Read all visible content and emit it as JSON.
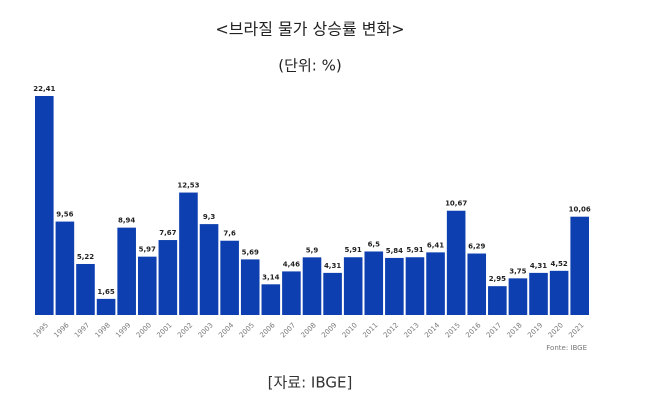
{
  "chart_data": {
    "type": "bar",
    "title": "<브라질 물가 상승률 변화>",
    "subtitle": "(단위: %)",
    "categories": [
      "1995",
      "1996",
      "1997",
      "1998",
      "1999",
      "2000",
      "2001",
      "2002",
      "2003",
      "2004",
      "2005",
      "2006",
      "2007",
      "2008",
      "2009",
      "2010",
      "2011",
      "2012",
      "2013",
      "2014",
      "2015",
      "2016",
      "2017",
      "2018",
      "2019",
      "2020",
      "2021"
    ],
    "values": [
      22.41,
      9.56,
      5.22,
      1.65,
      8.94,
      5.97,
      7.67,
      12.53,
      9.3,
      7.6,
      5.69,
      3.14,
      4.46,
      5.9,
      4.31,
      5.91,
      6.5,
      5.84,
      5.91,
      6.41,
      10.67,
      6.29,
      2.95,
      3.75,
      4.31,
      4.52,
      10.06
    ],
    "value_labels": [
      "22,41",
      "9,56",
      "5,22",
      "1,65",
      "8,94",
      "5,97",
      "7,67",
      "12,53",
      "9,3",
      "7,6",
      "5,69",
      "3,14",
      "4,46",
      "5,9",
      "4,31",
      "5,91",
      "6,5",
      "5,84",
      "5,91",
      "6,41",
      "10,67",
      "6,29",
      "2,95",
      "3,75",
      "4,31",
      "4,52",
      "10,06"
    ],
    "color": "#0d3fb0",
    "chart_source": "Fonte: IBGE",
    "source": "[자료: IBGE]"
  }
}
